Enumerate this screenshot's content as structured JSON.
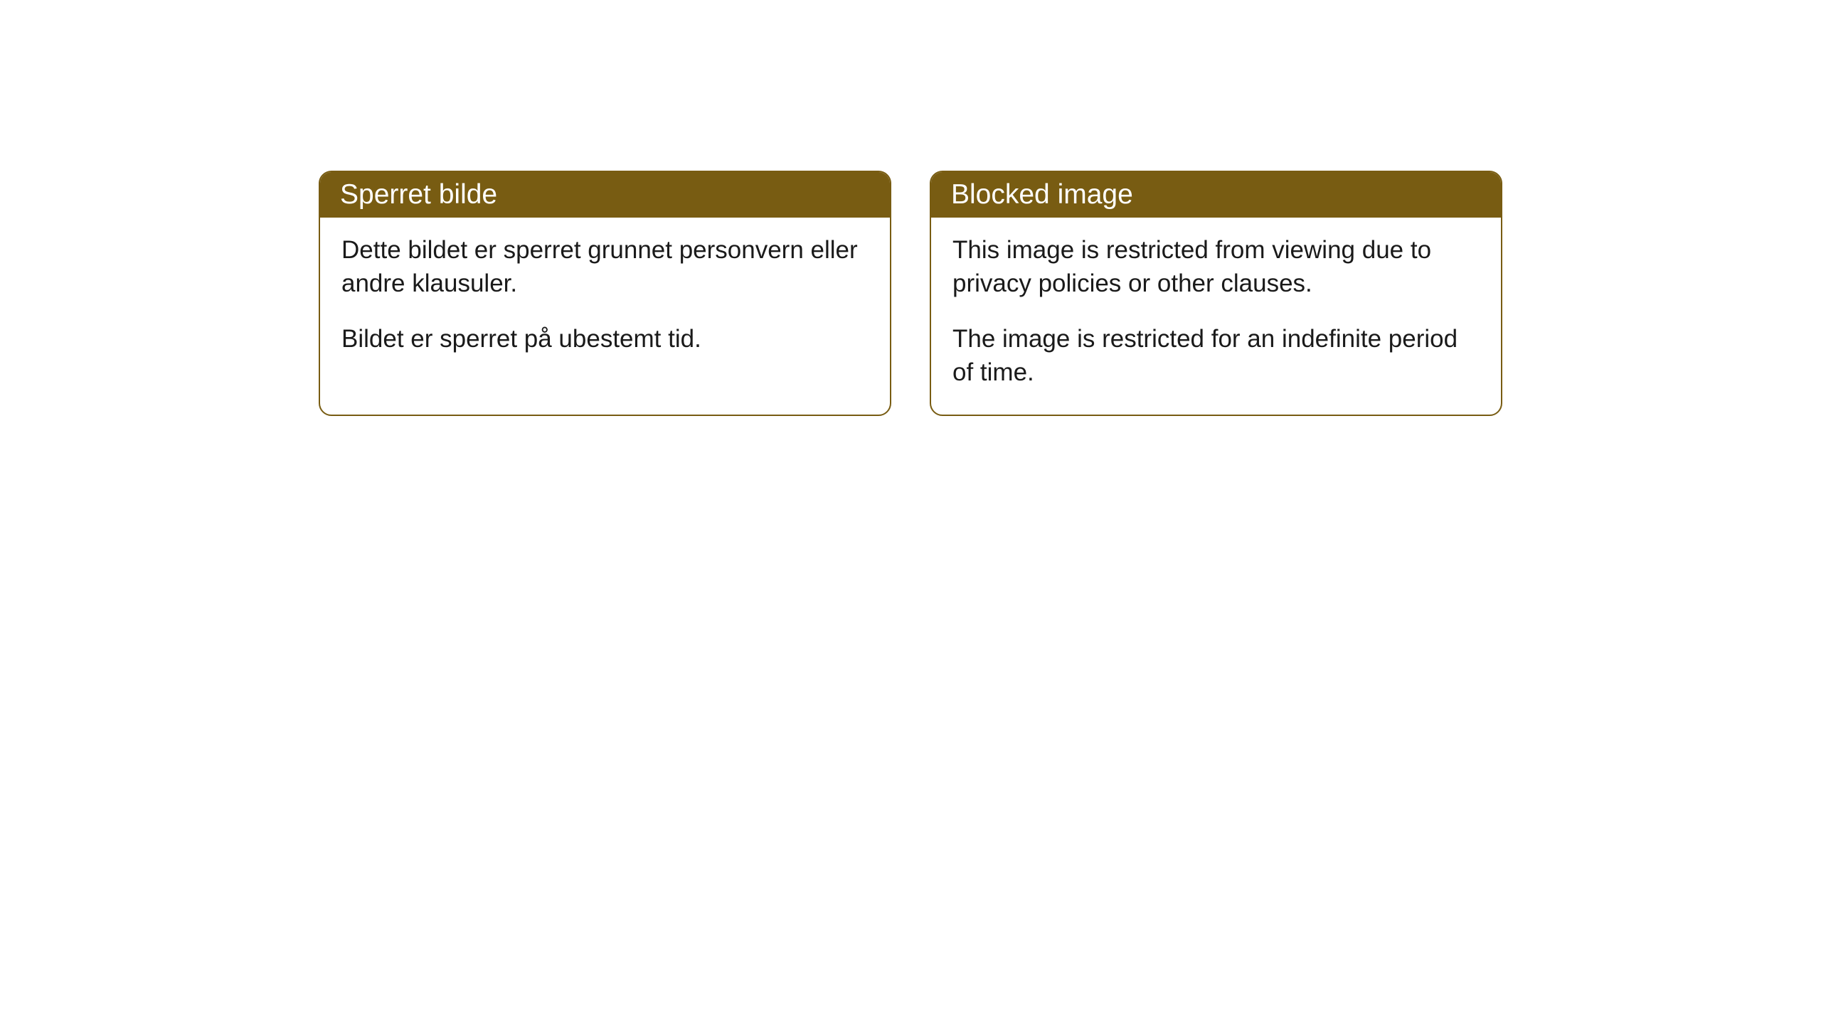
{
  "styling": {
    "headerBackgroundColor": "#785c12",
    "headerTextColor": "#ffffff",
    "borderColor": "#785c12",
    "bodyTextColor": "#1a1a1a",
    "cardBackgroundColor": "#ffffff",
    "pageBackgroundColor": "#ffffff",
    "borderRadius": "18px",
    "headerFontSize": "39px",
    "bodyFontSize": "35px"
  },
  "cards": [
    {
      "title": "Sperret bilde",
      "paragraphs": [
        "Dette bildet er sperret grunnet personvern eller andre klausuler.",
        "Bildet er sperret på ubestemt tid."
      ]
    },
    {
      "title": "Blocked image",
      "paragraphs": [
        "This image is restricted from viewing due to privacy policies or other clauses.",
        "The image is restricted for an indefinite period of time."
      ]
    }
  ]
}
